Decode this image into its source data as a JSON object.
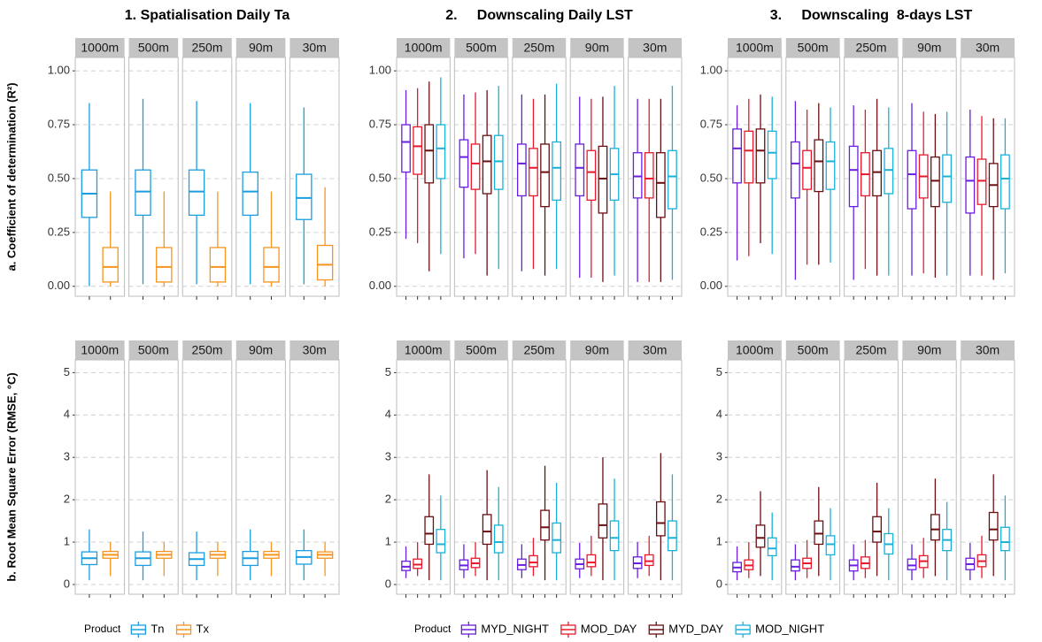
{
  "chart_data": [
    {
      "type": "box",
      "title": "1. Spatialisation Daily Ta",
      "ylabel": "a. Coefficient of determination (R²)",
      "facets": [
        "1000m",
        "500m",
        "250m",
        "90m",
        "30m"
      ],
      "ylim": [
        -0.046,
        1.062
      ],
      "yticks": [
        {
          "value": 0,
          "label": "0.00"
        },
        0.25,
        {
          "value": 0.5,
          "label": "0.50"
        },
        0.75,
        {
          "value": 1,
          "label": "1.00"
        }
      ],
      "grid": true,
      "series": [
        {
          "color": "#1a9ee0",
          "values": [
            [
              0.0,
              0.32,
              0.43,
              0.54,
              0.85
            ],
            [
              0.01,
              0.33,
              0.44,
              0.54,
              0.87
            ],
            [
              0.01,
              0.33,
              0.44,
              0.54,
              0.86
            ],
            [
              0.01,
              0.33,
              0.44,
              0.53,
              0.85
            ],
            [
              0.01,
              0.31,
              0.41,
              0.52,
              0.83
            ]
          ]
        },
        {
          "color": "#f7941d",
          "values": [
            [
              0.0,
              0.02,
              0.09,
              0.18,
              0.44
            ],
            [
              0.0,
              0.02,
              0.09,
              0.18,
              0.44
            ],
            [
              0.0,
              0.02,
              0.09,
              0.18,
              0.44
            ],
            [
              0.0,
              0.02,
              0.09,
              0.18,
              0.44
            ],
            [
              0.0,
              0.03,
              0.1,
              0.19,
              0.46
            ]
          ]
        }
      ]
    },
    {
      "type": "box",
      "title": "2.     Downscaling Daily LST",
      "facets": [
        "1000m",
        "500m",
        "250m",
        "90m",
        "30m"
      ],
      "ylim": [
        -0.046,
        1.062
      ],
      "yticks": [
        {
          "value": 0,
          "label": "0.00"
        },
        0.25,
        {
          "value": 0.5,
          "label": "0.50"
        },
        0.75,
        {
          "value": 1,
          "label": "1.00"
        }
      ],
      "grid": true,
      "series": [
        {
          "color": "#6a1ee0",
          "values": [
            [
              0.22,
              0.53,
              0.67,
              0.75,
              0.91
            ],
            [
              0.13,
              0.46,
              0.6,
              0.68,
              0.89
            ],
            [
              0.07,
              0.42,
              0.57,
              0.66,
              0.89
            ],
            [
              0.04,
              0.42,
              0.55,
              0.66,
              0.88
            ],
            [
              0.02,
              0.41,
              0.51,
              0.62,
              0.87
            ]
          ]
        },
        {
          "color": "#e8192c",
          "values": [
            [
              0.2,
              0.52,
              0.65,
              0.74,
              0.92
            ],
            [
              0.15,
              0.45,
              0.57,
              0.66,
              0.9
            ],
            [
              0.08,
              0.42,
              0.55,
              0.64,
              0.87
            ],
            [
              0.04,
              0.4,
              0.53,
              0.63,
              0.87
            ],
            [
              0.02,
              0.41,
              0.5,
              0.62,
              0.87
            ]
          ]
        },
        {
          "color": "#6b0f12",
          "values": [
            [
              0.07,
              0.48,
              0.63,
              0.75,
              0.95
            ],
            [
              0.05,
              0.43,
              0.58,
              0.7,
              0.91
            ],
            [
              0.05,
              0.37,
              0.53,
              0.66,
              0.89
            ],
            [
              0.02,
              0.34,
              0.5,
              0.65,
              0.88
            ],
            [
              0.02,
              0.32,
              0.48,
              0.62,
              0.87
            ]
          ]
        },
        {
          "color": "#1ab0d8",
          "values": [
            [
              0.15,
              0.5,
              0.64,
              0.75,
              0.97
            ],
            [
              0.08,
              0.45,
              0.58,
              0.7,
              0.93
            ],
            [
              0.08,
              0.4,
              0.55,
              0.67,
              0.94
            ],
            [
              0.05,
              0.4,
              0.52,
              0.64,
              0.93
            ],
            [
              0.03,
              0.36,
              0.51,
              0.63,
              0.93
            ]
          ]
        }
      ]
    },
    {
      "type": "box",
      "title": "3.     Downscaling  8-days LST",
      "facets": [
        "1000m",
        "500m",
        "250m",
        "90m",
        "30m"
      ],
      "ylim": [
        -0.046,
        1.062
      ],
      "yticks": [
        {
          "value": 0,
          "label": "0.00"
        },
        0.25,
        {
          "value": 0.5,
          "label": "0.50"
        },
        0.75,
        {
          "value": 1,
          "label": "1.00"
        }
      ],
      "grid": true,
      "series": [
        {
          "color": "#6a1ee0",
          "values": [
            [
              0.12,
              0.48,
              0.64,
              0.73,
              0.84
            ],
            [
              0.03,
              0.41,
              0.57,
              0.67,
              0.86
            ],
            [
              0.03,
              0.37,
              0.54,
              0.65,
              0.84
            ],
            [
              0.05,
              0.36,
              0.52,
              0.63,
              0.85
            ],
            [
              0.05,
              0.34,
              0.49,
              0.6,
              0.82
            ]
          ]
        },
        {
          "color": "#e8192c",
          "values": [
            [
              0.14,
              0.48,
              0.63,
              0.72,
              0.87
            ],
            [
              0.1,
              0.45,
              0.55,
              0.63,
              0.82
            ],
            [
              0.08,
              0.42,
              0.52,
              0.62,
              0.82
            ],
            [
              0.06,
              0.41,
              0.51,
              0.61,
              0.81
            ],
            [
              0.05,
              0.38,
              0.49,
              0.59,
              0.79
            ]
          ]
        },
        {
          "color": "#6b0f12",
          "values": [
            [
              0.2,
              0.48,
              0.63,
              0.73,
              0.89
            ],
            [
              0.1,
              0.44,
              0.58,
              0.68,
              0.85
            ],
            [
              0.05,
              0.42,
              0.53,
              0.63,
              0.87
            ],
            [
              0.04,
              0.37,
              0.49,
              0.6,
              0.8
            ],
            [
              0.03,
              0.37,
              0.47,
              0.57,
              0.78
            ]
          ]
        },
        {
          "color": "#1ab0d8",
          "values": [
            [
              0.15,
              0.5,
              0.62,
              0.72,
              0.88
            ],
            [
              0.11,
              0.45,
              0.58,
              0.67,
              0.83
            ],
            [
              0.05,
              0.43,
              0.54,
              0.64,
              0.83
            ],
            [
              0.05,
              0.39,
              0.51,
              0.61,
              0.81
            ],
            [
              0.06,
              0.36,
              0.5,
              0.61,
              0.78
            ]
          ]
        }
      ]
    },
    {
      "type": "box",
      "ylabel": "b. Root Mean Square Error (RMSE, °C)",
      "legend_title": "Product",
      "facets": [
        "1000m",
        "500m",
        "250m",
        "90m",
        "30m"
      ],
      "ylim": [
        -0.23,
        5.3
      ],
      "yticks": [
        0,
        1,
        2,
        3,
        4,
        5
      ],
      "grid": true,
      "series": [
        {
          "name": "Tn",
          "color": "#1a9ee0",
          "values": [
            [
              0.1,
              0.47,
              0.62,
              0.77,
              1.3
            ],
            [
              0.1,
              0.45,
              0.62,
              0.77,
              1.25
            ],
            [
              0.1,
              0.45,
              0.6,
              0.75,
              1.25
            ],
            [
              0.1,
              0.45,
              0.62,
              0.78,
              1.3
            ],
            [
              0.1,
              0.48,
              0.65,
              0.8,
              1.3
            ]
          ]
        },
        {
          "name": "Tx",
          "color": "#f7941d",
          "values": [
            [
              0.2,
              0.62,
              0.7,
              0.78,
              1.0
            ],
            [
              0.2,
              0.62,
              0.7,
              0.78,
              1.0
            ],
            [
              0.2,
              0.62,
              0.7,
              0.78,
              1.0
            ],
            [
              0.2,
              0.62,
              0.7,
              0.78,
              1.0
            ],
            [
              0.2,
              0.62,
              0.7,
              0.77,
              1.0
            ]
          ]
        }
      ]
    },
    {
      "type": "box",
      "legend_title": "Product",
      "facets": [
        "1000m",
        "500m",
        "250m",
        "90m",
        "30m"
      ],
      "ylim": [
        -0.23,
        5.3
      ],
      "yticks": [
        0,
        1,
        2,
        3,
        4,
        5
      ],
      "grid": true,
      "series": [
        {
          "name": "MYD_NIGHT",
          "color": "#6a1ee0",
          "values": [
            [
              0.15,
              0.33,
              0.42,
              0.55,
              0.9
            ],
            [
              0.15,
              0.35,
              0.45,
              0.58,
              0.95
            ],
            [
              0.15,
              0.35,
              0.46,
              0.6,
              0.95
            ],
            [
              0.15,
              0.37,
              0.48,
              0.6,
              0.98
            ],
            [
              0.15,
              0.38,
              0.5,
              0.65,
              1.0
            ]
          ]
        },
        {
          "name": "MOD_DAY",
          "color": "#e8192c",
          "values": [
            [
              0.2,
              0.38,
              0.47,
              0.6,
              1.0
            ],
            [
              0.2,
              0.4,
              0.5,
              0.62,
              1.0
            ],
            [
              0.2,
              0.42,
              0.52,
              0.68,
              1.1
            ],
            [
              0.2,
              0.42,
              0.52,
              0.7,
              1.15
            ],
            [
              0.2,
              0.45,
              0.55,
              0.7,
              1.15
            ]
          ]
        },
        {
          "name": "MYD_DAY",
          "color": "#6b0f12",
          "values": [
            [
              0.1,
              0.95,
              1.2,
              1.6,
              2.6
            ],
            [
              0.1,
              0.95,
              1.25,
              1.65,
              2.7
            ],
            [
              0.1,
              1.05,
              1.35,
              1.75,
              2.8
            ],
            [
              0.1,
              1.1,
              1.4,
              1.9,
              3.0
            ],
            [
              0.1,
              1.15,
              1.45,
              1.95,
              3.1
            ]
          ]
        },
        {
          "name": "MOD_NIGHT",
          "color": "#1ab0d8",
          "values": [
            [
              0.1,
              0.75,
              0.95,
              1.3,
              2.1
            ],
            [
              0.1,
              0.75,
              1.0,
              1.4,
              2.3
            ],
            [
              0.1,
              0.75,
              1.05,
              1.45,
              2.4
            ],
            [
              0.1,
              0.8,
              1.1,
              1.5,
              2.5
            ],
            [
              0.1,
              0.8,
              1.1,
              1.5,
              2.6
            ]
          ]
        }
      ]
    },
    {
      "type": "box",
      "facets": [
        "1000m",
        "500m",
        "250m",
        "90m",
        "30m"
      ],
      "ylim": [
        -0.23,
        5.3
      ],
      "yticks": [
        0,
        1,
        2,
        3,
        4,
        5
      ],
      "grid": true,
      "series": [
        {
          "color": "#6a1ee0",
          "values": [
            [
              0.1,
              0.3,
              0.4,
              0.52,
              0.9
            ],
            [
              0.1,
              0.32,
              0.42,
              0.58,
              0.95
            ],
            [
              0.1,
              0.32,
              0.45,
              0.58,
              0.95
            ],
            [
              0.1,
              0.35,
              0.45,
              0.6,
              0.95
            ],
            [
              0.1,
              0.35,
              0.48,
              0.62,
              0.98
            ]
          ]
        },
        {
          "color": "#e8192c",
          "values": [
            [
              0.15,
              0.35,
              0.45,
              0.58,
              1.0
            ],
            [
              0.15,
              0.38,
              0.5,
              0.62,
              1.05
            ],
            [
              0.15,
              0.38,
              0.5,
              0.65,
              1.05
            ],
            [
              0.15,
              0.4,
              0.55,
              0.68,
              1.1
            ],
            [
              0.15,
              0.42,
              0.55,
              0.7,
              1.15
            ]
          ]
        },
        {
          "color": "#6b0f12",
          "values": [
            [
              0.2,
              0.88,
              1.1,
              1.4,
              2.2
            ],
            [
              0.2,
              0.95,
              1.2,
              1.5,
              2.3
            ],
            [
              0.2,
              1.0,
              1.25,
              1.6,
              2.4
            ],
            [
              0.2,
              1.05,
              1.3,
              1.65,
              2.5
            ],
            [
              0.2,
              1.05,
              1.3,
              1.7,
              2.6
            ]
          ]
        },
        {
          "color": "#1ab0d8",
          "values": [
            [
              0.1,
              0.68,
              0.85,
              1.1,
              1.7
            ],
            [
              0.1,
              0.7,
              0.95,
              1.15,
              1.8
            ],
            [
              0.1,
              0.72,
              0.95,
              1.2,
              1.8
            ],
            [
              0.1,
              0.8,
              1.05,
              1.3,
              1.95
            ],
            [
              0.1,
              0.8,
              1.0,
              1.35,
              2.1
            ]
          ]
        }
      ]
    }
  ]
}
